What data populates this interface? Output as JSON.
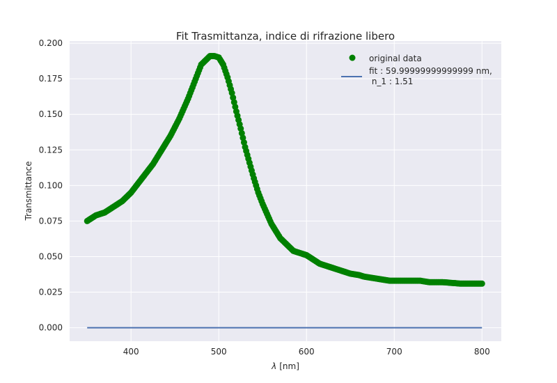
{
  "chart_data": {
    "type": "scatter",
    "title": "Fit Trasmittanza, indice di rifrazione libero",
    "xlabel_symbol": "λ",
    "xlabel_unit": "[nm]",
    "ylabel": "Transmittance",
    "xlim": [
      330,
      822
    ],
    "ylim": [
      -0.0095,
      0.2015
    ],
    "xticks": [
      "400",
      "500",
      "600",
      "700",
      "800"
    ],
    "xtick_values": [
      400,
      500,
      600,
      700,
      800
    ],
    "yticks": [
      "0.000",
      "0.025",
      "0.050",
      "0.075",
      "0.100",
      "0.125",
      "0.150",
      "0.175",
      "0.200"
    ],
    "ytick_values": [
      0,
      0.025,
      0.05,
      0.075,
      0.1,
      0.125,
      0.15,
      0.175,
      0.2
    ],
    "grid": true,
    "legend_position": "top-right",
    "series": [
      {
        "name": "original data",
        "kind": "scatter",
        "color": "#008000",
        "x": [
          350,
          355,
          360,
          365,
          370,
          375,
          380,
          385,
          390,
          395,
          400,
          405,
          410,
          415,
          420,
          425,
          430,
          435,
          440,
          445,
          450,
          455,
          460,
          465,
          470,
          475,
          480,
          485,
          490,
          495,
          500,
          505,
          510,
          515,
          520,
          525,
          530,
          535,
          540,
          545,
          550,
          555,
          560,
          565,
          570,
          575,
          580,
          585,
          590,
          595,
          600,
          605,
          610,
          615,
          620,
          625,
          630,
          635,
          640,
          645,
          650,
          655,
          660,
          665,
          670,
          675,
          680,
          685,
          690,
          695,
          700,
          705,
          710,
          715,
          720,
          725,
          730,
          735,
          740,
          745,
          750,
          755,
          760,
          765,
          770,
          775,
          780,
          785,
          790,
          795,
          800
        ],
        "y": [
          0.075,
          0.077,
          0.079,
          0.08,
          0.081,
          0.083,
          0.085,
          0.087,
          0.089,
          0.092,
          0.095,
          0.099,
          0.103,
          0.107,
          0.111,
          0.115,
          0.12,
          0.125,
          0.13,
          0.135,
          0.141,
          0.147,
          0.154,
          0.161,
          0.169,
          0.177,
          0.185,
          0.188,
          0.191,
          0.191,
          0.19,
          0.185,
          0.176,
          0.165,
          0.152,
          0.14,
          0.127,
          0.116,
          0.105,
          0.095,
          0.087,
          0.08,
          0.073,
          0.068,
          0.063,
          0.06,
          0.057,
          0.054,
          0.053,
          0.052,
          0.051,
          0.049,
          0.047,
          0.045,
          0.044,
          0.043,
          0.042,
          0.041,
          0.04,
          0.039,
          0.038,
          0.0375,
          0.037,
          0.036,
          0.0355,
          0.035,
          0.0345,
          0.034,
          0.0335,
          0.033,
          0.033,
          0.033,
          0.033,
          0.033,
          0.033,
          0.033,
          0.033,
          0.0325,
          0.032,
          0.032,
          0.032,
          0.032,
          0.0318,
          0.0315,
          0.0313,
          0.031,
          0.031,
          0.031,
          0.031,
          0.031,
          0.031
        ]
      },
      {
        "name": "fit : 59.99999999999999 nm,\n n_1 : 1.51",
        "kind": "line",
        "color": "#4c72b0",
        "x": [
          350,
          800
        ],
        "y": [
          0,
          0
        ]
      }
    ]
  }
}
